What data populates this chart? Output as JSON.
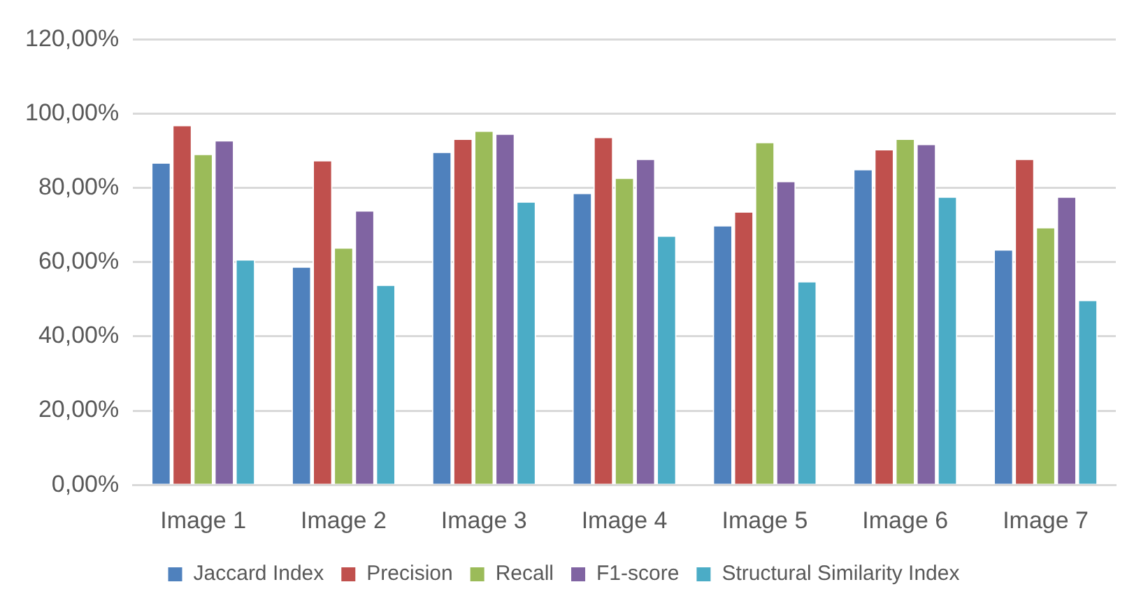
{
  "chart_data": {
    "type": "bar",
    "categories": [
      "Image 1",
      "Image 2",
      "Image 3",
      "Image 4",
      "Image 5",
      "Image 6",
      "Image 7"
    ],
    "series": [
      {
        "name": "Jaccard Index",
        "color": "#4f81bd",
        "values": [
          86.9,
          58.9,
          89.8,
          78.7,
          70.0,
          85.1,
          63.5
        ]
      },
      {
        "name": "Precision",
        "color": "#c0504d",
        "values": [
          97.0,
          87.5,
          93.3,
          93.8,
          73.7,
          90.5,
          87.9
        ]
      },
      {
        "name": "Recall",
        "color": "#9bbb59",
        "values": [
          89.2,
          64.0,
          95.5,
          82.8,
          92.4,
          93.3,
          69.5
        ]
      },
      {
        "name": "F1-score",
        "color": "#8064a2",
        "values": [
          92.9,
          74.0,
          94.7,
          87.9,
          81.9,
          91.9,
          77.7
        ]
      },
      {
        "name": "Structural Similarity Index",
        "color": "#4bacc6",
        "values": [
          60.8,
          54.0,
          76.4,
          67.2,
          54.9,
          77.7,
          49.9
        ]
      }
    ],
    "ylim": [
      0,
      120
    ],
    "yticks": [
      {
        "value": 0,
        "label": "0,00%"
      },
      {
        "value": 20,
        "label": "20,00%"
      },
      {
        "value": 40,
        "label": "40,00%"
      },
      {
        "value": 60,
        "label": "60,00%"
      },
      {
        "value": 80,
        "label": "80,00%"
      },
      {
        "value": 100,
        "label": "100,00%"
      },
      {
        "value": 120,
        "label": "120,00%"
      }
    ],
    "grid": "y",
    "legend": "bottom"
  }
}
